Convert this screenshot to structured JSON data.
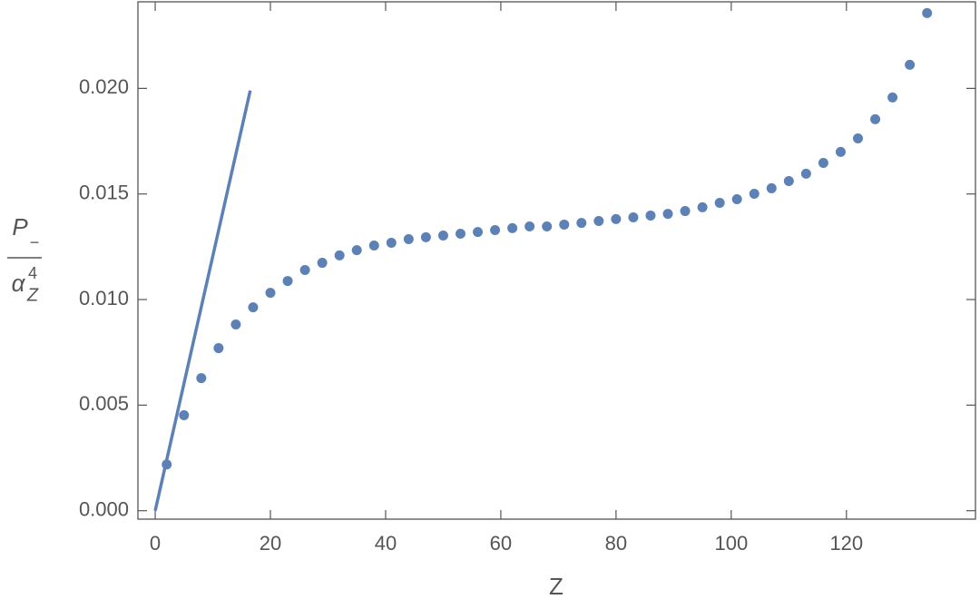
{
  "chart_data": {
    "type": "scatter",
    "x_label": "Z",
    "y_label": {
      "numerator": "P",
      "numerator_sub": "−",
      "denominator": "α",
      "denominator_sub": "Z",
      "denominator_sup": "4"
    },
    "xlim": [
      -3,
      142.4
    ],
    "ylim": [
      -0.0004,
      0.0241
    ],
    "xticks": [
      0,
      20,
      40,
      60,
      80,
      100,
      120
    ],
    "yticks": [
      {
        "value": 0,
        "label": "0.000"
      },
      {
        "value": 0.005,
        "label": "0.005"
      },
      {
        "value": 0.01,
        "label": "0.010"
      },
      {
        "value": 0.015,
        "label": "0.015"
      },
      {
        "value": 0.02,
        "label": "0.020"
      }
    ],
    "grid": false,
    "series": [
      {
        "mode": "line",
        "color": "#5e81b5",
        "x": [
          0,
          16.5
        ],
        "values": [
          0,
          0.0199
        ]
      },
      {
        "mode": "markers",
        "color": "#5e81b5",
        "x": [
          2,
          5,
          8,
          11,
          14,
          17,
          20,
          23,
          26,
          29,
          32,
          35,
          38,
          41,
          44,
          47,
          50,
          53,
          56,
          59,
          62,
          65,
          68,
          71,
          74,
          77,
          80,
          83,
          86,
          89,
          92,
          95,
          98,
          101,
          104,
          107,
          110,
          113,
          116,
          119,
          122,
          125,
          128,
          131,
          134
        ],
        "values": [
          0.00219,
          0.00452,
          0.00628,
          0.0077,
          0.00882,
          0.00963,
          0.01032,
          0.01088,
          0.0114,
          0.01174,
          0.01209,
          0.01234,
          0.01256,
          0.01269,
          0.01286,
          0.01295,
          0.01303,
          0.01312,
          0.0132,
          0.01329,
          0.01338,
          0.01346,
          0.01346,
          0.01355,
          0.01363,
          0.01372,
          0.01381,
          0.01389,
          0.01398,
          0.01406,
          0.01419,
          0.01437,
          0.01458,
          0.01475,
          0.01501,
          0.01527,
          0.01561,
          0.01596,
          0.01647,
          0.01699,
          0.01763,
          0.01854,
          0.01957,
          0.02112,
          0.02357
        ]
      }
    ]
  }
}
